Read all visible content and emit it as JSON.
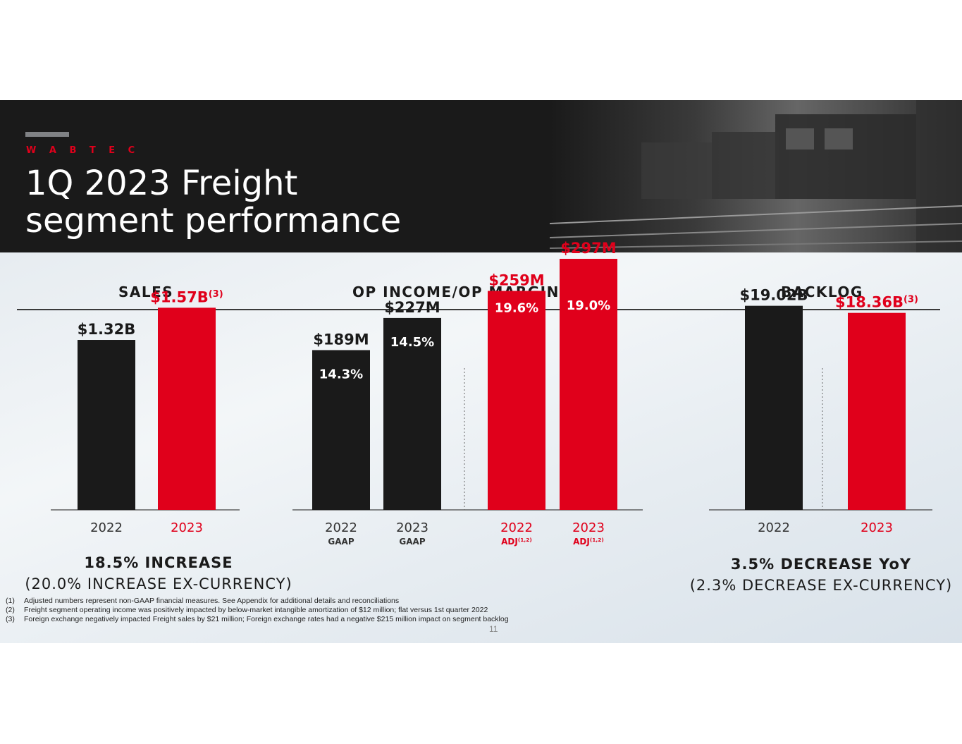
{
  "header": {
    "brand": "W A B T E C",
    "title_line1": "1Q 2023 Freight",
    "title_line2": "segment performance"
  },
  "sections": {
    "sales": "SALES",
    "op_income": "OP INCOME/OP MARGIN",
    "backlog": "BACKLOG"
  },
  "colors": {
    "dark": "#1a1a1a",
    "accent": "#e0001b"
  },
  "chart_data": [
    {
      "type": "bar",
      "title": "SALES",
      "categories": [
        "2022",
        "2023"
      ],
      "values": [
        1.32,
        1.57
      ],
      "value_labels": [
        "$1.32B",
        "$1.57B"
      ],
      "label_superscripts": [
        "",
        "(3)"
      ],
      "colors": [
        "#1a1a1a",
        "#e0001b"
      ],
      "unit": "$B",
      "ylim": [
        0,
        1.95
      ]
    },
    {
      "type": "bar",
      "title": "OP INCOME/OP MARGIN",
      "categories": [
        "2022",
        "2023",
        "2022",
        "2023"
      ],
      "category_sublabels": [
        "GAAP",
        "GAAP",
        "ADJ",
        "ADJ"
      ],
      "sublabel_superscripts": [
        "",
        "",
        "(1,2)",
        "(1,2)"
      ],
      "values": [
        189,
        227,
        259,
        297
      ],
      "value_labels": [
        "$189M",
        "$227M",
        "$259M",
        "$297M"
      ],
      "margins": [
        "14.3%",
        "14.5%",
        "19.6%",
        "19.0%"
      ],
      "colors": [
        "#1a1a1a",
        "#1a1a1a",
        "#e0001b",
        "#e0001b"
      ],
      "unit": "$M",
      "ylim": [
        0,
        297
      ]
    },
    {
      "type": "bar",
      "title": "BACKLOG",
      "categories": [
        "2022",
        "2023"
      ],
      "values": [
        19.02,
        18.36
      ],
      "value_labels": [
        "$19.02B",
        "$18.36B"
      ],
      "label_superscripts": [
        "",
        "(3)"
      ],
      "colors": [
        "#1a1a1a",
        "#e0001b"
      ],
      "unit": "$B",
      "ylim": [
        0,
        23.4
      ]
    }
  ],
  "summaries": {
    "sales_main": "18.5% INCREASE",
    "sales_sub": "(20.0% INCREASE EX-CURRENCY)",
    "backlog_main": "3.5% DECREASE YoY",
    "backlog_sub": "(2.3% DECREASE EX-CURRENCY)"
  },
  "footnotes": [
    {
      "num": "(1)",
      "text": "Adjusted numbers represent non-GAAP financial measures. See Appendix for additional details and reconciliations"
    },
    {
      "num": "(2)",
      "text": "Freight segment operating income was positively impacted by below-market intangible amortization of $12 million; flat versus 1st quarter 2022"
    },
    {
      "num": "(3)",
      "text": "Foreign exchange negatively impacted Freight sales by $21 million; Foreign exchange rates had a negative $215 million impact on segment backlog"
    }
  ],
  "page_number": "11"
}
